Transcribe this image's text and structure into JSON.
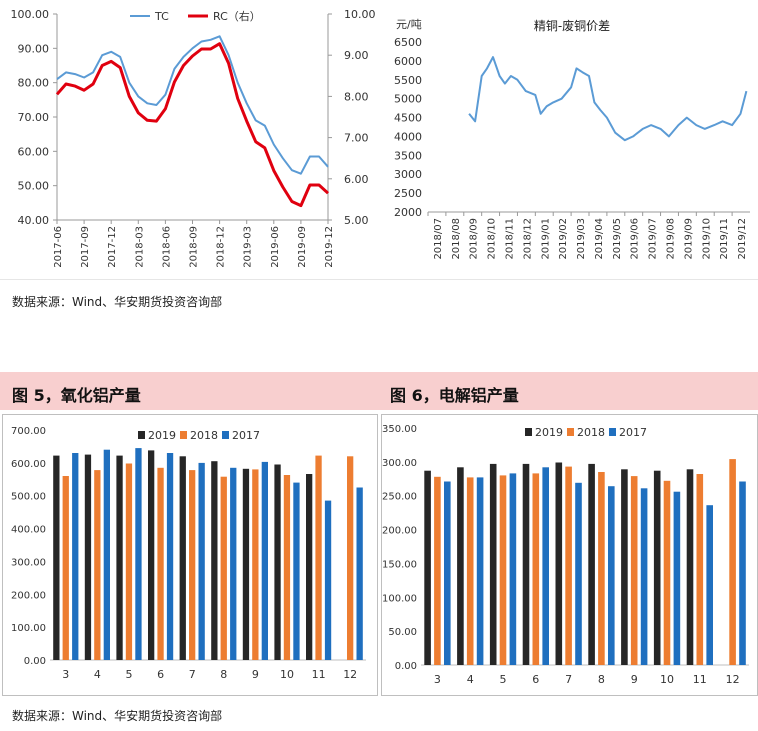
{
  "top_source": "数据来源：Wind、华安期货投资咨询部",
  "bottom_source": "数据来源：Wind、华安期货投资咨询部",
  "fig5_title": "图 5，氧化铝产量",
  "fig6_title": "图 6，电解铝产量",
  "colors": {
    "tc": "#5b9bd5",
    "rc": "#e0000f",
    "spread": "#5b9bd5",
    "s2019": "#262626",
    "s2018": "#ed7d31",
    "s2017": "#1f6fbf"
  },
  "chart_data": [
    {
      "type": "line",
      "title": "",
      "xlabel": "",
      "ylabel_left": "",
      "ylabel_right": "",
      "x_ticks": [
        "2017-06",
        "2017-09",
        "2017-12",
        "2018-03",
        "2018-06",
        "2018-09",
        "2018-12",
        "2019-03",
        "2019-06",
        "2019-09",
        "2019-12"
      ],
      "y_left_ticks": [
        "40.00",
        "50.00",
        "60.00",
        "70.00",
        "80.00",
        "90.00",
        "100.00"
      ],
      "y_right_ticks": [
        "5.00",
        "6.00",
        "7.00",
        "8.00",
        "9.00",
        "10.00"
      ],
      "ylim_left": [
        40,
        100
      ],
      "ylim_right": [
        5,
        10
      ],
      "legend": "top",
      "series": [
        {
          "name": "TC",
          "axis": "left",
          "x": [
            "2017-06",
            "2017-07",
            "2017-08",
            "2017-09",
            "2017-10",
            "2017-11",
            "2017-12",
            "2018-01",
            "2018-02",
            "2018-03",
            "2018-04",
            "2018-05",
            "2018-06",
            "2018-07",
            "2018-08",
            "2018-09",
            "2018-10",
            "2018-11",
            "2018-12",
            "2019-01",
            "2019-02",
            "2019-03",
            "2019-04",
            "2019-05",
            "2019-06",
            "2019-07",
            "2019-08",
            "2019-09",
            "2019-10",
            "2019-11",
            "2019-12"
          ],
          "values": [
            81.0,
            83.0,
            82.5,
            81.5,
            83.0,
            88.0,
            89.0,
            87.5,
            80.0,
            76.0,
            74.0,
            73.5,
            76.5,
            84.0,
            87.5,
            90.0,
            92.0,
            92.5,
            93.5,
            88.0,
            80.0,
            74.0,
            69.0,
            67.5,
            62.0,
            58.0,
            54.5,
            53.5,
            58.5,
            58.5,
            55.5
          ]
        },
        {
          "name": "RC（右）",
          "axis": "right",
          "x": [
            "2017-06",
            "2017-07",
            "2017-08",
            "2017-09",
            "2017-10",
            "2017-11",
            "2017-12",
            "2018-01",
            "2018-02",
            "2018-03",
            "2018-04",
            "2018-05",
            "2018-06",
            "2018-07",
            "2018-08",
            "2018-09",
            "2018-10",
            "2018-11",
            "2018-12",
            "2019-01",
            "2019-02",
            "2019-03",
            "2019-04",
            "2019-05",
            "2019-06",
            "2019-07",
            "2019-08",
            "2019-09",
            "2019-10",
            "2019-11",
            "2019-12"
          ],
          "values": [
            8.05,
            8.3,
            8.25,
            8.15,
            8.3,
            8.75,
            8.85,
            8.7,
            8.0,
            7.6,
            7.42,
            7.4,
            7.7,
            8.35,
            8.75,
            8.98,
            9.15,
            9.15,
            9.28,
            8.8,
            7.95,
            7.4,
            6.9,
            6.75,
            6.2,
            5.8,
            5.45,
            5.35,
            5.85,
            5.85,
            5.65
          ]
        }
      ]
    },
    {
      "type": "line",
      "title": "精铜-废铜价差",
      "xlabel": "",
      "ylabel": "元/吨",
      "x_ticks": [
        "2018/07",
        "2018/08",
        "2018/09",
        "2018/10",
        "2018/11",
        "2018/12",
        "2019/01",
        "2019/02",
        "2019/03",
        "2019/04",
        "2019/05",
        "2019/06",
        "2019/07",
        "2019/08",
        "2019/09",
        "2019/10",
        "2019/11",
        "2019/12"
      ],
      "y_ticks": [
        "2000",
        "2500",
        "3000",
        "3500",
        "4000",
        "4500",
        "5000",
        "5500",
        "6000",
        "6500"
      ],
      "ylim": [
        2000,
        6500
      ],
      "series": [
        {
          "name": "精铜-废铜价差",
          "x": [
            "2018-09-10",
            "2018-09-20",
            "2018-10-01",
            "2018-10-10",
            "2018-10-20",
            "2018-11-01",
            "2018-11-10",
            "2018-11-20",
            "2018-12-01",
            "2018-12-15",
            "2019-01-01",
            "2019-01-10",
            "2019-01-20",
            "2019-02-01",
            "2019-02-15",
            "2019-03-01",
            "2019-03-10",
            "2019-03-20",
            "2019-04-01",
            "2019-04-10",
            "2019-04-20",
            "2019-05-01",
            "2019-05-15",
            "2019-06-01",
            "2019-06-15",
            "2019-07-01",
            "2019-07-15",
            "2019-08-01",
            "2019-08-15",
            "2019-09-01",
            "2019-09-15",
            "2019-10-01",
            "2019-10-15",
            "2019-11-01",
            "2019-11-15",
            "2019-12-01",
            "2019-12-15",
            "2019-12-25"
          ],
          "values": [
            4600,
            4400,
            5600,
            5800,
            6100,
            5600,
            5400,
            5600,
            5500,
            5200,
            5100,
            4600,
            4800,
            4900,
            5000,
            5300,
            5800,
            5700,
            5600,
            4900,
            4700,
            4500,
            4100,
            3900,
            4000,
            4200,
            4300,
            4200,
            4000,
            4300,
            4500,
            4300,
            4200,
            4300,
            4400,
            4300,
            4600,
            5200
          ]
        }
      ]
    },
    {
      "type": "bar",
      "title": "",
      "xlabel": "",
      "ylabel": "",
      "categories": [
        "3",
        "4",
        "5",
        "6",
        "7",
        "8",
        "9",
        "10",
        "11",
        "12"
      ],
      "y_ticks": [
        "0.00",
        "100.00",
        "200.00",
        "300.00",
        "400.00",
        "500.00",
        "600.00",
        "700.00"
      ],
      "ylim": [
        0,
        700
      ],
      "legend": "top",
      "series": [
        {
          "name": "2019",
          "values": [
            622,
            625,
            622,
            638,
            620,
            605,
            582,
            595,
            566,
            null
          ]
        },
        {
          "name": "2018",
          "values": [
            560,
            578,
            598,
            585,
            578,
            558,
            580,
            563,
            622,
            620
          ]
        },
        {
          "name": "2017",
          "values": [
            630,
            640,
            645,
            630,
            600,
            585,
            603,
            540,
            485,
            525
          ]
        }
      ]
    },
    {
      "type": "bar",
      "title": "",
      "xlabel": "",
      "ylabel": "",
      "categories": [
        "3",
        "4",
        "5",
        "6",
        "7",
        "8",
        "9",
        "10",
        "11",
        "12"
      ],
      "y_ticks": [
        "0.00",
        "50.00",
        "100.00",
        "150.00",
        "200.00",
        "250.00",
        "300.00",
        "350.00"
      ],
      "ylim": [
        0,
        350
      ],
      "legend": "top",
      "series": [
        {
          "name": "2019",
          "values": [
            287,
            292,
            297,
            297,
            299,
            297,
            289,
            287,
            289,
            null
          ]
        },
        {
          "name": "2018",
          "values": [
            278,
            277,
            280,
            283,
            293,
            285,
            279,
            272,
            282,
            304
          ]
        },
        {
          "name": "2017",
          "values": [
            271,
            277,
            283,
            292,
            269,
            264,
            261,
            256,
            236,
            271
          ]
        }
      ]
    }
  ]
}
